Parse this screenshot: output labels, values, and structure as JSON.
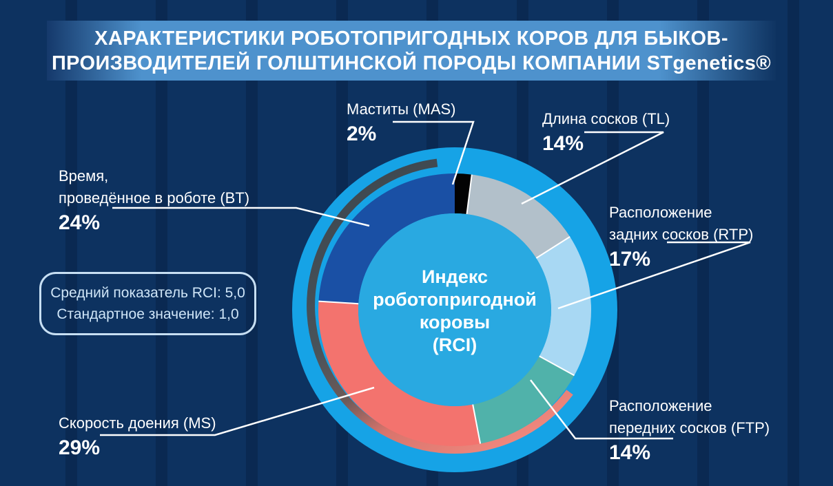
{
  "title": {
    "line1": "ХАРАКТЕРИСТИКИ РОБОТОПРИГОДНЫХ КОРОВ ДЛЯ БЫКОВ-",
    "line2": "ПРОИЗВОДИТЕЛЕЙ ГОЛШТИНСКОЙ ПОРОДЫ КОМПАНИИ STgenetics®"
  },
  "chart_data": {
    "type": "pie",
    "subtype": "donut",
    "title": "Индекс роботопригодной коровы (RCI)",
    "center_lines": [
      "Индекс",
      "роботопригодной",
      "коровы",
      "(RCI)"
    ],
    "start_angle_deg": 0,
    "direction": "clockwise",
    "slices": [
      {
        "label": "Маститы",
        "code": "MAS",
        "value": 2,
        "unit": "%",
        "color": "#030303"
      },
      {
        "label": "Длина сосков",
        "code": "TL",
        "value": 14,
        "unit": "%",
        "color": "#B2C0CA"
      },
      {
        "label": "Расположение задних сосков",
        "code": "RTP",
        "value": 17,
        "unit": "%",
        "color": "#A8D8F3"
      },
      {
        "label": "Расположение передних сосков",
        "code": "FTP",
        "value": 14,
        "unit": "%",
        "color": "#50B2AA"
      },
      {
        "label": "Скорость доения",
        "code": "MS",
        "value": 29,
        "unit": "%",
        "color": "#F3736E"
      },
      {
        "label": "Время, проведённое в роботе",
        "code": "BT",
        "value": 24,
        "unit": "%",
        "color": "#1A50A5"
      }
    ],
    "colors": {
      "background": "#0D3260",
      "outer_ring": "#16A3E6",
      "center_circle": "#29A9E1",
      "swoosh_dark": "#47515A",
      "swoosh_salmon": "#EE837B",
      "leader_line": "#FFFFFF"
    }
  },
  "callouts": {
    "mas": {
      "lines": [
        "Маститы (MAS)"
      ],
      "pct": "2%"
    },
    "tl": {
      "lines": [
        "Длина сосков (TL)"
      ],
      "pct": "14%"
    },
    "rtp": {
      "lines": [
        "Расположение",
        "задних сосков (RTP)"
      ],
      "pct": "17%"
    },
    "ftp": {
      "lines": [
        "Расположение",
        "передних сосков (FTP)"
      ],
      "pct": "14%"
    },
    "ms": {
      "lines": [
        "Скорость доения (MS)"
      ],
      "pct": "29%"
    },
    "bt": {
      "lines": [
        "Время,",
        "проведённое в роботе (BT)"
      ],
      "pct": "24%"
    }
  },
  "info_box": {
    "line1": "Средний показатель RCI: 5,0",
    "line2": "Стандартное значение: 1,0"
  }
}
